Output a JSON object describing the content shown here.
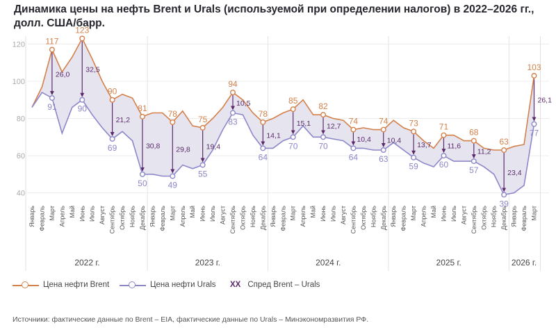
{
  "title": "Динамика цены на нефть Brent и Urals (используемой при определении налогов) в 2022–2026 гг., долл. США/барр.",
  "legend": {
    "brent": "Цена нефти Brent",
    "urals": "Цена нефти Urals",
    "spread_mark": "XX",
    "spread": "Спред Brent – Urals"
  },
  "source": "Источники: фактические данные по Brent – EIA, фактические данные по Urals – Минэкономразвития РФ.",
  "colors": {
    "brent": "#d3804a",
    "urals": "#8b87c9",
    "fill": "#e6e4ef",
    "spread": "#5a2a6b",
    "axis": "#999999"
  },
  "chart_data": {
    "type": "line",
    "ylim": [
      35,
      128
    ],
    "yticks": [
      40,
      60,
      80,
      100,
      120
    ],
    "months": [
      "Январь",
      "Февраль",
      "Март",
      "Апрель",
      "Май",
      "Июнь",
      "Июль",
      "Август",
      "Сентябрь",
      "Октябрь",
      "Ноябрь",
      "Декабрь",
      "Январь",
      "Февраль",
      "Март",
      "Апрель",
      "Май",
      "Июнь",
      "Июль",
      "Август",
      "Сентябрь",
      "Октябрь",
      "Ноябрь",
      "Декабрь",
      "Январь",
      "Февраль",
      "Март",
      "Апрель",
      "Май",
      "Июнь",
      "Июль",
      "Август",
      "Сентябрь",
      "Октябрь",
      "Ноябрь",
      "Декабрь",
      "Январь",
      "Февраль",
      "Март",
      "Апрель",
      "Май",
      "Июнь",
      "Июль",
      "Август",
      "Сентябрь",
      "Октябрь",
      "Ноябрь",
      "Декабрь",
      "Январь",
      "Февраль",
      "Март"
    ],
    "years": [
      {
        "label": "2022 г.",
        "start": 0,
        "end": 11
      },
      {
        "label": "2023 г.",
        "start": 12,
        "end": 23
      },
      {
        "label": "2024 г.",
        "start": 24,
        "end": 35
      },
      {
        "label": "2025 г.",
        "start": 36,
        "end": 47
      },
      {
        "label": "2026 г.",
        "start": 48,
        "end": 50
      }
    ],
    "series": [
      {
        "name": "Цена нефти Brent",
        "values": [
          86,
          97,
          117,
          105,
          113,
          123,
          112,
          100,
          90,
          93,
          91,
          81,
          83,
          83,
          78,
          84,
          76,
          75,
          80,
          86,
          94,
          90,
          83,
          78,
          80,
          83,
          85,
          90,
          82,
          82,
          80,
          79,
          74,
          75,
          74,
          74,
          79,
          75,
          73,
          68,
          64,
          71,
          71,
          68,
          68,
          64,
          63,
          63,
          65,
          66,
          103
        ]
      },
      {
        "name": "Цена нефти Urals",
        "values": [
          86,
          94,
          91,
          72,
          86,
          90,
          82,
          75,
          69,
          73,
          68,
          50,
          50,
          49,
          49,
          55,
          53,
          55,
          63,
          74,
          83,
          82,
          71,
          64,
          64,
          68,
          70,
          76,
          70,
          70,
          69,
          68,
          64,
          64,
          63,
          63,
          67,
          63,
          59,
          56,
          54,
          60,
          57,
          57,
          57,
          54,
          50,
          39,
          40,
          44,
          77
        ]
      }
    ],
    "point_labels": [
      {
        "i": 2,
        "brent": "117",
        "urals": "91",
        "spread": "26,0"
      },
      {
        "i": 5,
        "brent": "123",
        "urals": "90",
        "spread": "32,5"
      },
      {
        "i": 8,
        "brent": "90",
        "urals": "69",
        "spread": "21,2"
      },
      {
        "i": 11,
        "brent": "81",
        "urals": "50",
        "spread": "30,8"
      },
      {
        "i": 14,
        "brent": "78",
        "urals": "49",
        "spread": "29,8"
      },
      {
        "i": 17,
        "brent": "75",
        "urals": "55",
        "spread": "19,4"
      },
      {
        "i": 20,
        "brent": "94",
        "urals": "83",
        "spread": "10,5"
      },
      {
        "i": 23,
        "brent": "78",
        "urals": "64",
        "spread": "14,1"
      },
      {
        "i": 26,
        "brent": "85",
        "urals": "70",
        "spread": "15,1"
      },
      {
        "i": 29,
        "brent": "82",
        "urals": "70",
        "spread": "12,7"
      },
      {
        "i": 32,
        "brent": "74",
        "urals": "64",
        "spread": "10,4"
      },
      {
        "i": 35,
        "brent": "74",
        "urals": "63",
        "spread": "10,4"
      },
      {
        "i": 38,
        "brent": "73",
        "urals": "59",
        "spread": "13,7"
      },
      {
        "i": 41,
        "brent": "71",
        "urals": "60",
        "spread": "11,6"
      },
      {
        "i": 44,
        "brent": "68",
        "urals": "57",
        "spread": "11,2"
      },
      {
        "i": 47,
        "brent": "63",
        "urals": "39",
        "spread": "23,4"
      },
      {
        "i": 50,
        "brent": "103",
        "urals": "77",
        "spread": "26,1"
      }
    ]
  }
}
